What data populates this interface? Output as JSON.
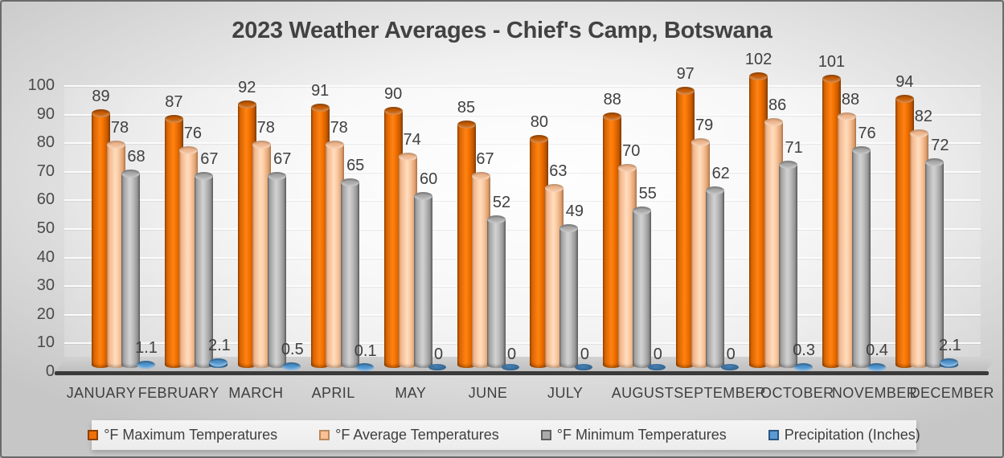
{
  "chart": {
    "title": "2023 Weather Averages - Chief's Camp, Botswana"
  },
  "chart_data": {
    "type": "bar",
    "subtype": "3d-cylinder",
    "title": "2023 Weather Averages - Chief's Camp, Botswana",
    "categories": [
      "JANUARY",
      "FEBRUARY",
      "MARCH",
      "APRIL",
      "MAY",
      "JUNE",
      "JULY",
      "AUGUST",
      "SEPTEMBER",
      "OCTOBER",
      "NOVEMBER",
      "DECEMBER"
    ],
    "series": [
      {
        "key": "max",
        "name": "°F Maximum Temperatures",
        "color": "#ED7008",
        "values": [
          89,
          87,
          92,
          91,
          90,
          85,
          80,
          88,
          97,
          102,
          101,
          94
        ]
      },
      {
        "key": "avg",
        "name": "°F Average Temperatures",
        "color": "#FBC093",
        "values": [
          78,
          76,
          78,
          78,
          74,
          67,
          63,
          70,
          79,
          86,
          88,
          82
        ]
      },
      {
        "key": "min",
        "name": "°F Minimum Temperatures",
        "color": "#ABABAB",
        "values": [
          68,
          67,
          67,
          65,
          60,
          52,
          49,
          55,
          62,
          71,
          76,
          72
        ]
      },
      {
        "key": "precip",
        "name": "Precipitation (Inches)",
        "color": "#5B9BD5",
        "values": [
          1.1,
          2.1,
          0.5,
          0.1,
          0,
          0,
          0,
          0,
          0,
          0.3,
          0.4,
          2.1
        ]
      }
    ],
    "y_axis": {
      "min": 0,
      "max": 100,
      "step": 10,
      "ticks": [
        0,
        10,
        20,
        30,
        40,
        50,
        60,
        70,
        80,
        90,
        100
      ]
    },
    "data_labels": true,
    "grid": true,
    "legend_position": "bottom",
    "background_color": "#E8E8E8",
    "floor_color": "#C6C6C6"
  }
}
